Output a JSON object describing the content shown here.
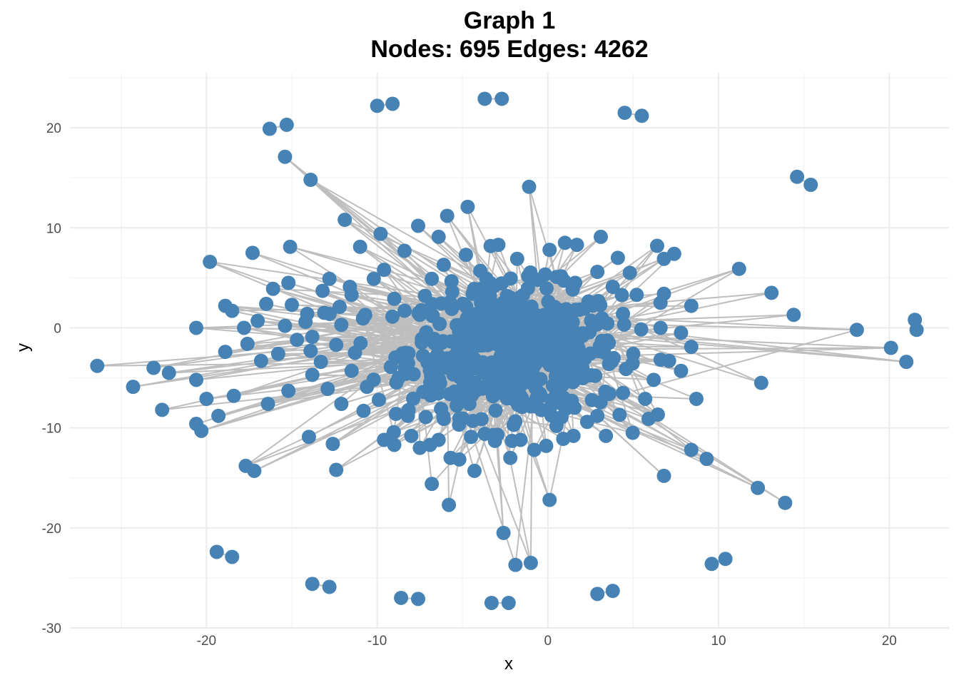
{
  "chart_data": {
    "type": "scatter",
    "title": "Graph 1",
    "subtitle": "Nodes: 695 Edges: 4262",
    "xlabel": "x",
    "ylabel": "y",
    "xlim": [
      -28,
      23.5
    ],
    "ylim": [
      -30,
      25.5
    ],
    "x_ticks": [
      -20,
      -10,
      0,
      10,
      20
    ],
    "y_ticks": [
      -30,
      -20,
      -10,
      0,
      10,
      20
    ],
    "x_tick_labels": [
      "-20",
      "-10",
      "0",
      "10",
      "20"
    ],
    "y_tick_labels": [
      "-30",
      "-20",
      "-10",
      "0",
      "10",
      "20"
    ],
    "grid": true,
    "colors": {
      "node": "#4682B4",
      "edge": "#BEBEBE",
      "grid_major": "#EBEBEB",
      "grid_minor": "#F3F3F3",
      "axis_text": "#4D4D4D"
    },
    "isolated_pairs": [
      [
        [
          -10.0,
          22.2
        ],
        [
          -9.1,
          22.4
        ]
      ],
      [
        [
          -3.7,
          22.9
        ],
        [
          -2.7,
          22.9
        ]
      ],
      [
        [
          4.5,
          21.5
        ],
        [
          5.5,
          21.2
        ]
      ],
      [
        [
          -16.3,
          19.9
        ],
        [
          -15.3,
          20.3
        ]
      ],
      [
        [
          14.6,
          15.1
        ],
        [
          15.4,
          14.3
        ]
      ],
      [
        [
          21.5,
          0.8
        ],
        [
          21.6,
          -0.2
        ]
      ],
      [
        [
          -19.4,
          -22.4
        ],
        [
          -18.5,
          -22.9
        ]
      ],
      [
        [
          -13.8,
          -25.6
        ],
        [
          -12.8,
          -25.9
        ]
      ],
      [
        [
          -8.6,
          -27.0
        ],
        [
          -7.6,
          -27.1
        ]
      ],
      [
        [
          -3.3,
          -27.5
        ],
        [
          -2.3,
          -27.5
        ]
      ],
      [
        [
          2.9,
          -26.6
        ],
        [
          3.8,
          -26.3
        ]
      ],
      [
        [
          9.6,
          -23.6
        ],
        [
          10.4,
          -23.1
        ]
      ]
    ],
    "hub_nodes": [
      [
        -26.4,
        -3.8
      ],
      [
        -24.3,
        -5.9
      ],
      [
        -23.1,
        -4.0
      ],
      [
        -22.6,
        -8.2
      ],
      [
        -22.2,
        -4.5
      ],
      [
        -20.6,
        0.0
      ],
      [
        -20.6,
        -5.2
      ],
      [
        -20.6,
        -9.6
      ],
      [
        -20.3,
        -10.3
      ],
      [
        -20.0,
        -7.1
      ],
      [
        -19.8,
        6.6
      ],
      [
        -19.3,
        -8.8
      ],
      [
        -18.9,
        2.2
      ],
      [
        -18.5,
        1.7
      ],
      [
        -18.4,
        -6.8
      ],
      [
        -18.9,
        -2.4
      ],
      [
        -17.8,
        0.0
      ],
      [
        -17.6,
        -1.6
      ],
      [
        -17.3,
        7.5
      ],
      [
        -17.0,
        0.7
      ],
      [
        -16.8,
        -3.3
      ],
      [
        -16.5,
        2.4
      ],
      [
        -16.4,
        -7.6
      ],
      [
        -16.1,
        3.9
      ],
      [
        -15.8,
        -2.6
      ],
      [
        -15.4,
        0.2
      ],
      [
        -15.2,
        4.5
      ],
      [
        -15.1,
        8.1
      ],
      [
        -15.0,
        2.3
      ],
      [
        -15.2,
        -6.3
      ],
      [
        -14.7,
        -1.2
      ],
      [
        -14.1,
        1.4
      ],
      [
        -13.8,
        -4.7
      ],
      [
        -13.2,
        3.7
      ],
      [
        -12.8,
        4.9
      ],
      [
        -12.4,
        -1.7
      ],
      [
        -12.1,
        0.3
      ],
      [
        -11.6,
        4.1
      ],
      [
        -11.3,
        -2.5
      ],
      [
        -11.0,
        8.1
      ],
      [
        -10.6,
        -5.9
      ],
      [
        -10.2,
        4.9
      ],
      [
        -9.8,
        9.4
      ],
      [
        -9.6,
        5.8
      ],
      [
        -9.2,
        -3.9
      ],
      [
        -8.9,
        -8.6
      ],
      [
        -8.4,
        7.7
      ],
      [
        -8.0,
        -10.8
      ],
      [
        -7.6,
        10.2
      ],
      [
        -7.2,
        3.2
      ],
      [
        -6.8,
        4.9
      ],
      [
        -6.8,
        -15.6
      ],
      [
        -6.4,
        9.1
      ],
      [
        -6.1,
        6.3
      ],
      [
        -5.9,
        11.2
      ],
      [
        -5.8,
        -17.7
      ],
      [
        -5.7,
        -13.0
      ],
      [
        -5.3,
        -2.4
      ],
      [
        -4.8,
        7.3
      ],
      [
        -4.7,
        12.1
      ],
      [
        -4.3,
        -14.3
      ],
      [
        -3.8,
        -4.3
      ],
      [
        -2.9,
        8.3
      ],
      [
        -2.6,
        -20.5
      ],
      [
        -2.2,
        -13.0
      ],
      [
        -1.9,
        -23.7
      ],
      [
        -1.8,
        6.9
      ],
      [
        -1.1,
        14.1
      ],
      [
        -1.0,
        -23.5
      ],
      [
        -0.8,
        -12.2
      ],
      [
        0.1,
        7.8
      ],
      [
        0.1,
        -17.2
      ],
      [
        1.0,
        8.5
      ],
      [
        1.7,
        8.3
      ],
      [
        2.3,
        -9.4
      ],
      [
        3.1,
        9.1
      ],
      [
        3.4,
        -10.8
      ],
      [
        4.1,
        7.0
      ],
      [
        4.2,
        -8.7
      ],
      [
        4.8,
        5.5
      ],
      [
        5.0,
        -2.6
      ],
      [
        5.2,
        3.3
      ],
      [
        5.7,
        -7.1
      ],
      [
        5.9,
        -9.1
      ],
      [
        6.2,
        -5.2
      ],
      [
        6.4,
        8.2
      ],
      [
        6.6,
        2.5
      ],
      [
        6.6,
        0.0
      ],
      [
        6.8,
        6.9
      ],
      [
        6.8,
        3.4
      ],
      [
        6.8,
        -14.8
      ],
      [
        7.1,
        -3.3
      ],
      [
        7.4,
        7.4
      ],
      [
        7.8,
        -0.5
      ],
      [
        7.8,
        -4.3
      ],
      [
        8.4,
        2.2
      ],
      [
        8.4,
        -1.9
      ],
      [
        8.4,
        -12.2
      ],
      [
        8.7,
        -7.1
      ],
      [
        9.3,
        -13.1
      ],
      [
        11.2,
        5.9
      ],
      [
        12.5,
        -5.5
      ],
      [
        12.3,
        -16.0
      ],
      [
        13.1,
        3.5
      ],
      [
        13.9,
        -17.5
      ],
      [
        14.4,
        1.3
      ],
      [
        18.1,
        -0.2
      ],
      [
        20.1,
        -2.0
      ],
      [
        21.0,
        -3.4
      ],
      [
        -11.9,
        10.8
      ],
      [
        -13.9,
        14.8
      ],
      [
        -15.4,
        17.1
      ],
      [
        -17.7,
        -13.8
      ],
      [
        -17.2,
        -14.3
      ],
      [
        -14.0,
        -10.9
      ],
      [
        -12.4,
        -14.2
      ],
      [
        -12.6,
        -11.6
      ],
      [
        -9.6,
        -11.2
      ],
      [
        -9.0,
        -11.7
      ],
      [
        -7.5,
        -12.0
      ],
      [
        -6.9,
        -11.7
      ],
      [
        -6.4,
        -11.2
      ],
      [
        -4.5,
        -10.9
      ],
      [
        -3.7,
        -10.6
      ],
      [
        -3.1,
        -11.3
      ],
      [
        -2.1,
        -11.3
      ],
      [
        -1.6,
        -11.2
      ],
      [
        -0.1,
        -11.8
      ],
      [
        0.9,
        -11.1
      ],
      [
        1.5,
        -10.8
      ],
      [
        -10.8,
        -8.3
      ],
      [
        -8.2,
        -8.8
      ],
      [
        -6.1,
        -9.1
      ],
      [
        -4.4,
        -9.3
      ],
      [
        -2.0,
        -9.7
      ],
      [
        0.5,
        -9.8
      ],
      [
        2.9,
        -8.8
      ],
      [
        -12.1,
        -7.6
      ],
      [
        -12.9,
        -6.1
      ],
      [
        -9.9,
        -7.2
      ],
      [
        -7.3,
        -6.4
      ],
      [
        -4.6,
        -7.6
      ],
      [
        -1.5,
        -7.9
      ],
      [
        1.4,
        -7.3
      ],
      [
        3.6,
        -6.6
      ],
      [
        4.4,
        -6.5
      ],
      [
        -13.3,
        -3.4
      ],
      [
        -11.5,
        -4.3
      ],
      [
        -13.8,
        -0.9
      ],
      [
        -10.7,
        1.3
      ],
      [
        -9.0,
        2.9
      ],
      [
        -7.5,
        1.3
      ],
      [
        -5.6,
        3.6
      ],
      [
        -3.6,
        4.9
      ],
      [
        -2.4,
        3.2
      ],
      [
        -0.6,
        4.8
      ],
      [
        1.6,
        4.5
      ],
      [
        2.9,
        5.6
      ],
      [
        3.8,
        4.1
      ],
      [
        4.4,
        1.4
      ],
      [
        -11.5,
        3.3
      ],
      [
        -13.1,
        1.5
      ],
      [
        -12.2,
        2.1
      ],
      [
        -14.2,
        0.6
      ],
      [
        -13.9,
        -2.3
      ]
    ],
    "core": {
      "center": [
        -2.0,
        -2.3
      ],
      "spread": [
        3.1,
        3.2
      ],
      "count": 517
    }
  }
}
